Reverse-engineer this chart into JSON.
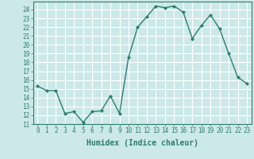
{
  "x": [
    0,
    1,
    2,
    3,
    4,
    5,
    6,
    7,
    8,
    9,
    10,
    11,
    12,
    13,
    14,
    15,
    16,
    17,
    18,
    19,
    20,
    21,
    22,
    23
  ],
  "y": [
    15.3,
    14.8,
    14.8,
    12.2,
    12.4,
    11.2,
    12.4,
    12.5,
    14.2,
    12.2,
    18.6,
    22.0,
    23.2,
    24.4,
    24.2,
    24.4,
    23.7,
    20.7,
    22.2,
    23.4,
    21.8,
    19.0,
    16.3,
    15.6
  ],
  "line_color": "#2e7d6e",
  "marker": "D",
  "markersize": 2.0,
  "linewidth": 1.0,
  "xlabel": "Humidex (Indice chaleur)",
  "xlim": [
    -0.5,
    23.5
  ],
  "ylim": [
    11,
    24.9
  ],
  "xticks": [
    0,
    1,
    2,
    3,
    4,
    5,
    6,
    7,
    8,
    9,
    10,
    11,
    12,
    13,
    14,
    15,
    16,
    17,
    18,
    19,
    20,
    21,
    22,
    23
  ],
  "yticks": [
    11,
    12,
    13,
    14,
    15,
    16,
    17,
    18,
    19,
    20,
    21,
    22,
    23,
    24
  ],
  "bg_color": "#cce8e8",
  "grid_color": "#ffffff",
  "tick_fontsize": 5.5,
  "xlabel_fontsize": 7.0
}
